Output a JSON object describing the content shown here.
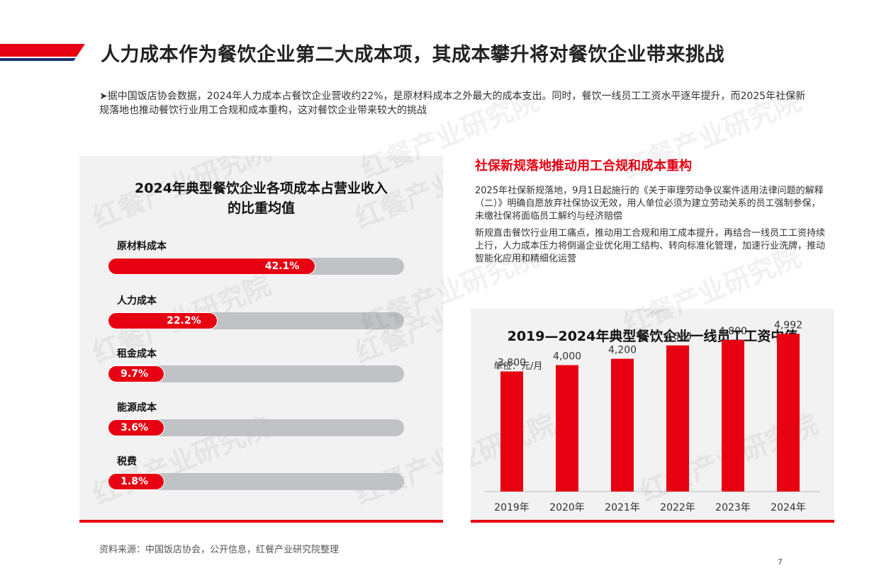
{
  "header": {
    "title": "人力成本作为餐饮企业第二大成本项，其成本攀升将对餐饮企业带来挑战",
    "accent_colors": [
      "#e60012",
      "#1d2e6e"
    ]
  },
  "intro": {
    "text": "➤据中国饭店协会数据，2024年人力成本占餐饮企业营收约22%，是原材料成本之外最大的成本支出。同时，餐饮一线员工工资水平逐年提升，而2025年社保新规落地也推动餐饮行业用工合规和成本重构，这对餐饮企业带来较大的挑战"
  },
  "right_text": {
    "heading": "社保新规落地推动用工合规和成本重构",
    "para1": "2025年社保新规落地，9月1日起施行的《关于审理劳动争议案件适用法律问题的解释（二）》明确自愿放弃社保协议无效，用人单位必须为建立劳动关系的员工强制参保，未缴社保将面临员工解约与经济赔偿",
    "para2": "新规直击餐饮行业用工痛点，推动用工合规和用工成本提升，再结合一线员工工资持续上行，人力成本压力将倒逼企业优化用工结构、转向标准化管理，加速行业洗牌，推动智能化应用和精细化运营"
  },
  "watermark": "红餐产业研究院",
  "chart_data": [
    {
      "type": "bar",
      "orientation": "horizontal",
      "title": "2024年典型餐饮企业各项成本占营业收入的比重均值",
      "title_lines": [
        "2024年典型餐饮企业各项成本占营业收入",
        "的比重均值"
      ],
      "categories": [
        "原材料成本",
        "人力成本",
        "租金成本",
        "能源成本",
        "税费"
      ],
      "values": [
        42.1,
        22.2,
        9.7,
        3.6,
        1.8
      ],
      "value_labels": [
        "42.1%",
        "22.2%",
        "9.7%",
        "3.6%",
        "1.8%"
      ],
      "unit": "%",
      "xlim": [
        0,
        100
      ],
      "colors": {
        "fill": "#e60012",
        "track": "#bfc3c6"
      }
    },
    {
      "type": "bar",
      "title": "2019—2024年典型餐饮企业一线员工工资中值",
      "unit_label": "单位：元/月",
      "categories": [
        "2019年",
        "2020年",
        "2021年",
        "2022年",
        "2023年",
        "2024年"
      ],
      "values": [
        3800,
        4000,
        4200,
        4623,
        4800,
        4992
      ],
      "value_labels": [
        "3,800",
        "4,000",
        "4,200",
        "4,623",
        "4,800",
        "4,992"
      ],
      "ylim": [
        0,
        6500
      ],
      "colors": {
        "bar": "#e60012",
        "axis": "#bbbbbb"
      }
    }
  ],
  "footer": {
    "source": "资料来源：中国饭店协会，公开信息，红餐产业研究院整理",
    "page": "7"
  }
}
